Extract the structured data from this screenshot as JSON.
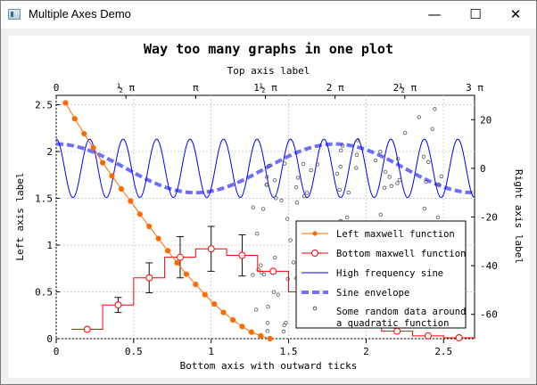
{
  "window": {
    "title": "Multiple Axes Demo",
    "minimize_glyph": "—",
    "maximize_glyph": "☐",
    "close_glyph": "✕"
  },
  "chart_data": {
    "type": "line",
    "title": "Way too many graphs in one plot",
    "xlabel": "Bottom axis with outward ticks",
    "ylabel": "Left axis label",
    "x2label": "Top axis label",
    "y2label": "Right axis label",
    "xlim": [
      0,
      2.7
    ],
    "ylim": [
      0,
      2.6
    ],
    "y2lim": [
      -70,
      30
    ],
    "x2lim": [
      0,
      3
    ],
    "grid": true,
    "legend_position": "bottom-right",
    "x_ticks": [
      "0",
      "0.5",
      "1",
      "1.5",
      "2",
      "2.5"
    ],
    "y_ticks": [
      "0",
      "0.5",
      "1",
      "1.5",
      "2",
      "2.5"
    ],
    "y2_ticks": [
      "-60",
      "-40",
      "-20",
      "0",
      "20"
    ],
    "x2_ticks": [
      "0",
      "½ π",
      "π",
      "1½ π",
      "2 π",
      "2½ π",
      "3 π"
    ],
    "series": [
      {
        "name": "Left maxwell function",
        "color": "#ff6a00",
        "axes": "bottom-left",
        "marker": "filled-circle",
        "x": [
          0.06,
          0.12,
          0.18,
          0.24,
          0.3,
          0.36,
          0.42,
          0.48,
          0.54,
          0.6,
          0.66,
          0.72,
          0.78,
          0.84,
          0.9,
          0.96,
          1.02,
          1.08,
          1.14,
          1.2,
          1.26,
          1.32,
          1.38
        ],
        "y": [
          2.52,
          2.35,
          2.19,
          2.04,
          1.88,
          1.74,
          1.6,
          1.47,
          1.33,
          1.2,
          1.07,
          0.94,
          0.81,
          0.69,
          0.58,
          0.47,
          0.37,
          0.28,
          0.2,
          0.13,
          0.07,
          0.03,
          0.0
        ]
      },
      {
        "name": "Bottom maxwell function",
        "color": "#ff0000",
        "axes": "bottom-left",
        "marker": "hollow-circle",
        "step": true,
        "x": [
          0.2,
          0.4,
          0.6,
          0.8,
          1.0,
          1.2,
          1.4,
          1.6,
          1.8,
          2.0,
          2.2,
          2.4,
          2.6
        ],
        "y": [
          0.1,
          0.36,
          0.65,
          0.87,
          0.96,
          0.89,
          0.72,
          0.5,
          0.31,
          0.17,
          0.08,
          0.03,
          0.01
        ],
        "error": [
          0.0,
          0.08,
          0.16,
          0.22,
          0.24,
          0.22,
          0.0,
          0.0,
          0.0,
          0.0,
          0.0,
          0.0,
          0.0
        ]
      },
      {
        "name": "High frequency sine",
        "color": "#0000ff",
        "axes": "top-right",
        "function": "sin",
        "amplitude": 12,
        "center": 0,
        "period": 0.24
      },
      {
        "name": "Sine envelope",
        "color": "#6f6fff",
        "axes": "top-right",
        "dashed": true,
        "function": "sin",
        "amplitude": 10,
        "center": 0,
        "period": 2
      },
      {
        "name": "Some random data around\na quadratic function",
        "color": "#555555",
        "axes": "top-right",
        "marker": "small-hollow-circle",
        "x_range": [
          1.4,
          2.8
        ],
        "trend": "quadratic"
      }
    ]
  }
}
